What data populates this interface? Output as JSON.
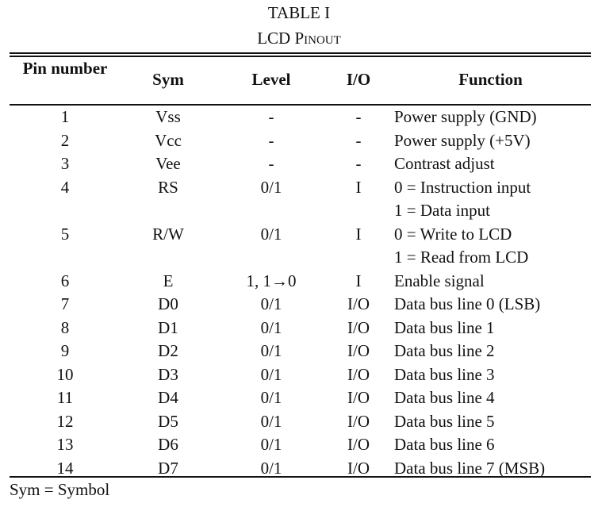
{
  "caption": {
    "line1": "TABLE I",
    "line2": "LCD Pinout"
  },
  "headers": {
    "pin": "Pin number",
    "sym": "Sym",
    "level": "Level",
    "io": "I/O",
    "function": "Function"
  },
  "rows": [
    {
      "pin": "1",
      "sym": "Vss",
      "level": "-",
      "io": "-",
      "function": "Power supply (GND)"
    },
    {
      "pin": "2",
      "sym": "Vcc",
      "level": "-",
      "io": "-",
      "function": "Power supply (+5V)"
    },
    {
      "pin": "3",
      "sym": "Vee",
      "level": "-",
      "io": "-",
      "function": "Contrast adjust"
    },
    {
      "pin": "4",
      "sym": "RS",
      "level": "0/1",
      "io": "I",
      "function": "0 = Instruction input"
    },
    {
      "pin": "",
      "sym": "",
      "level": "",
      "io": "",
      "function": "1 = Data input"
    },
    {
      "pin": "5",
      "sym": "R/W",
      "level": "0/1",
      "io": "I",
      "function": "0 = Write to LCD"
    },
    {
      "pin": "",
      "sym": "",
      "level": "",
      "io": "",
      "function": "1 = Read from LCD"
    },
    {
      "pin": "6",
      "sym": "E",
      "level": "1, 1→0",
      "io": "I",
      "function": "Enable signal"
    },
    {
      "pin": "7",
      "sym": "D0",
      "level": "0/1",
      "io": "I/O",
      "function": "Data bus line 0 (LSB)"
    },
    {
      "pin": "8",
      "sym": "D1",
      "level": "0/1",
      "io": "I/O",
      "function": "Data bus line 1"
    },
    {
      "pin": "9",
      "sym": "D2",
      "level": "0/1",
      "io": "I/O",
      "function": "Data bus line 2"
    },
    {
      "pin": "10",
      "sym": "D3",
      "level": "0/1",
      "io": "I/O",
      "function": "Data bus line 3"
    },
    {
      "pin": "11",
      "sym": "D4",
      "level": "0/1",
      "io": "I/O",
      "function": "Data bus line 4"
    },
    {
      "pin": "12",
      "sym": "D5",
      "level": "0/1",
      "io": "I/O",
      "function": "Data bus line 5"
    },
    {
      "pin": "13",
      "sym": "D6",
      "level": "0/1",
      "io": "I/O",
      "function": "Data bus line 6"
    },
    {
      "pin": "14",
      "sym": "D7",
      "level": "0/1",
      "io": "I/O",
      "function": "Data bus line 7 (MSB)"
    }
  ],
  "footnote": "Sym = Symbol"
}
